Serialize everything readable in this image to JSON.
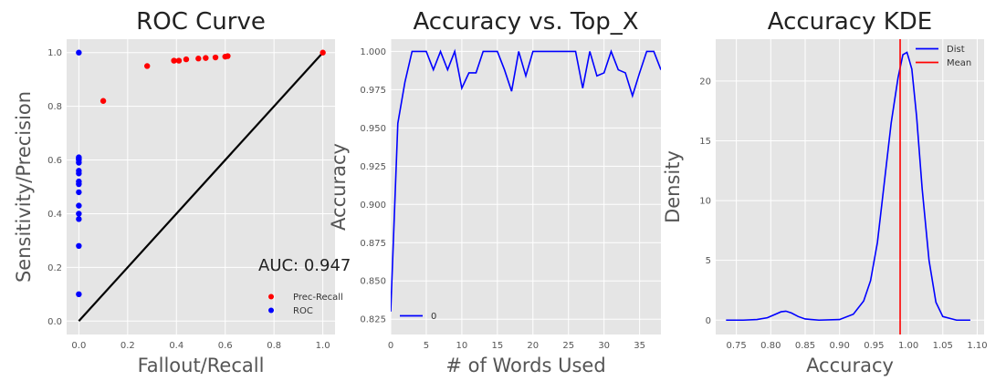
{
  "chart_data": [
    {
      "type": "scatter",
      "title": "ROC Curve",
      "xlabel": "Fallout/Recall",
      "ylabel": "Sensitivity/Precision",
      "xlim": [
        -0.05,
        1.05
      ],
      "ylim": [
        -0.05,
        1.05
      ],
      "xticks": [
        "0.0",
        "0.2",
        "0.4",
        "0.6",
        "0.8",
        "1.0"
      ],
      "yticks": [
        "0.0",
        "0.2",
        "0.4",
        "0.6",
        "0.8",
        "1.0"
      ],
      "annotation": "AUC: 0.947",
      "legend_position": "lower-right",
      "grid": true,
      "series": [
        {
          "name": "Prec-Recall",
          "color": "#ff0000",
          "x": [
            0.1,
            0.28,
            0.39,
            0.41,
            0.44,
            0.49,
            0.52,
            0.56,
            0.6,
            0.61,
            1.0
          ],
          "y": [
            0.82,
            0.95,
            0.97,
            0.97,
            0.975,
            0.978,
            0.98,
            0.982,
            0.985,
            0.987,
            1.0
          ]
        },
        {
          "name": "ROC",
          "color": "#0000ff",
          "x": [
            0,
            0,
            0,
            0,
            0,
            0,
            0,
            0,
            0,
            0,
            0,
            0,
            0,
            0,
            0
          ],
          "y": [
            0.1,
            0.28,
            0.38,
            0.4,
            0.43,
            0.48,
            0.51,
            0.52,
            0.55,
            0.56,
            0.59,
            0.6,
            0.605,
            0.61,
            1.0
          ]
        }
      ],
      "reference_line": {
        "color": "#000000",
        "x": [
          0,
          1
        ],
        "y": [
          0,
          1
        ]
      }
    },
    {
      "type": "line",
      "title": "Accuracy vs. Top_X",
      "xlabel": "# of Words Used",
      "ylabel": "Accuracy",
      "xlim": [
        0,
        38
      ],
      "ylim": [
        0.815,
        1.008
      ],
      "xticks": [
        "0",
        "5",
        "10",
        "15",
        "20",
        "25",
        "30",
        "35"
      ],
      "yticks": [
        "0.825",
        "0.850",
        "0.875",
        "0.900",
        "0.925",
        "0.950",
        "0.975",
        "1.000"
      ],
      "legend_position": "lower-left",
      "grid": true,
      "series": [
        {
          "name": "0",
          "color": "#0000ff",
          "x": [
            0,
            1,
            2,
            3,
            4,
            5,
            6,
            7,
            8,
            9,
            10,
            11,
            12,
            13,
            14,
            15,
            16,
            17,
            18,
            19,
            20,
            21,
            22,
            23,
            24,
            25,
            26,
            27,
            28,
            29,
            30,
            31,
            32,
            33,
            34,
            35,
            36,
            37,
            38
          ],
          "y": [
            0.83,
            0.953,
            0.98,
            1.0,
            1.0,
            1.0,
            0.988,
            1.0,
            0.988,
            1.0,
            0.976,
            0.986,
            0.986,
            1.0,
            1.0,
            1.0,
            0.988,
            0.974,
            1.0,
            0.984,
            1.0,
            1.0,
            1.0,
            1.0,
            1.0,
            1.0,
            1.0,
            0.976,
            1.0,
            0.984,
            0.986,
            1.0,
            0.988,
            0.986,
            0.971,
            0.986,
            1.0,
            1.0,
            0.988
          ]
        }
      ]
    },
    {
      "type": "line",
      "title": "Accuracy KDE",
      "xlabel": "Accuracy",
      "ylabel": "Density",
      "xlim": [
        0.72,
        1.11
      ],
      "ylim": [
        -1.2,
        23.5
      ],
      "xticks": [
        "0.75",
        "0.80",
        "0.85",
        "0.90",
        "0.95",
        "1.00",
        "1.05",
        "1.10"
      ],
      "yticks": [
        "0",
        "5",
        "10",
        "15",
        "20"
      ],
      "legend_position": "top-right",
      "grid": true,
      "series": [
        {
          "name": "Dist",
          "color": "#0000ff",
          "x": [
            0.735,
            0.76,
            0.78,
            0.795,
            0.805,
            0.815,
            0.822,
            0.83,
            0.84,
            0.85,
            0.87,
            0.9,
            0.92,
            0.935,
            0.945,
            0.955,
            0.965,
            0.975,
            0.985,
            0.992,
            0.998,
            1.005,
            1.012,
            1.02,
            1.03,
            1.04,
            1.05,
            1.07,
            1.09
          ],
          "y": [
            0,
            0,
            0.05,
            0.2,
            0.45,
            0.7,
            0.75,
            0.6,
            0.3,
            0.1,
            0,
            0.05,
            0.5,
            1.6,
            3.3,
            6.5,
            11.5,
            16.5,
            20.3,
            22.2,
            22.4,
            21.0,
            17.0,
            11.0,
            5.0,
            1.5,
            0.3,
            0,
            0
          ]
        },
        {
          "name": "Mean",
          "color": "#ff0000",
          "x": [
            0.988,
            0.988
          ],
          "y": [
            -1.2,
            23.5
          ]
        }
      ]
    }
  ]
}
